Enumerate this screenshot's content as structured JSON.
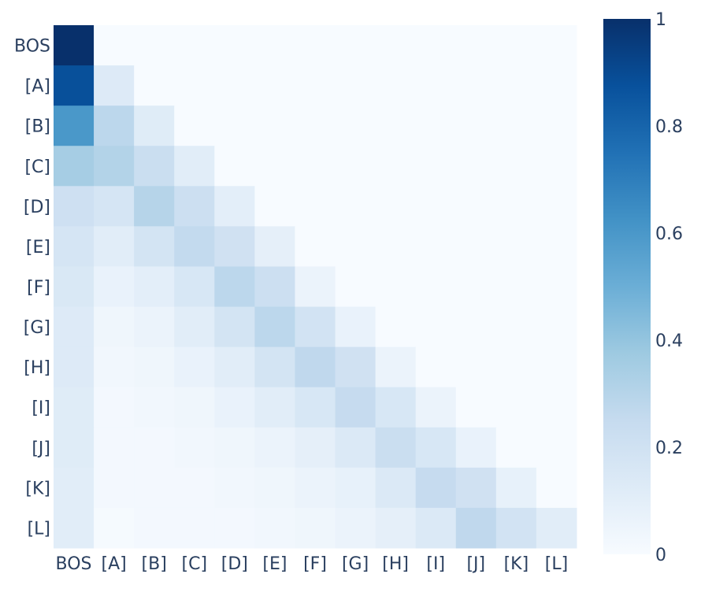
{
  "chart_data": {
    "type": "heatmap",
    "x_labels": [
      "BOS",
      "[A]",
      "[B]",
      "[C]",
      "[D]",
      "[E]",
      "[F]",
      "[G]",
      "[H]",
      "[I]",
      "[J]",
      "[K]",
      "[L]"
    ],
    "y_labels": [
      "BOS",
      "[A]",
      "[B]",
      "[C]",
      "[D]",
      "[E]",
      "[F]",
      "[G]",
      "[H]",
      "[I]",
      "[J]",
      "[K]",
      "[L]"
    ],
    "values": [
      [
        1.0,
        0,
        0,
        0,
        0,
        0,
        0,
        0,
        0,
        0,
        0,
        0,
        0
      ],
      [
        0.88,
        0.13,
        0,
        0,
        0,
        0,
        0,
        0,
        0,
        0,
        0,
        0,
        0
      ],
      [
        0.6,
        0.28,
        0.12,
        0,
        0,
        0,
        0,
        0,
        0,
        0,
        0,
        0,
        0
      ],
      [
        0.35,
        0.31,
        0.23,
        0.11,
        0,
        0,
        0,
        0,
        0,
        0,
        0,
        0,
        0
      ],
      [
        0.21,
        0.17,
        0.3,
        0.22,
        0.1,
        0,
        0,
        0,
        0,
        0,
        0,
        0,
        0
      ],
      [
        0.17,
        0.11,
        0.18,
        0.26,
        0.2,
        0.09,
        0,
        0,
        0,
        0,
        0,
        0,
        0
      ],
      [
        0.15,
        0.07,
        0.1,
        0.16,
        0.28,
        0.22,
        0.06,
        0,
        0,
        0,
        0,
        0,
        0
      ],
      [
        0.13,
        0.04,
        0.06,
        0.11,
        0.18,
        0.28,
        0.19,
        0.07,
        0,
        0,
        0,
        0,
        0
      ],
      [
        0.13,
        0.03,
        0.04,
        0.07,
        0.11,
        0.18,
        0.27,
        0.2,
        0.06,
        0,
        0,
        0,
        0
      ],
      [
        0.12,
        0.02,
        0.03,
        0.04,
        0.07,
        0.11,
        0.16,
        0.25,
        0.16,
        0.06,
        0,
        0,
        0
      ],
      [
        0.12,
        0.02,
        0.02,
        0.03,
        0.04,
        0.06,
        0.09,
        0.14,
        0.23,
        0.16,
        0.07,
        0,
        0
      ],
      [
        0.11,
        0.02,
        0.02,
        0.02,
        0.03,
        0.04,
        0.06,
        0.08,
        0.14,
        0.25,
        0.2,
        0.08,
        0
      ],
      [
        0.11,
        0.01,
        0.02,
        0.02,
        0.02,
        0.03,
        0.04,
        0.06,
        0.09,
        0.14,
        0.27,
        0.19,
        0.11
      ]
    ],
    "zrange": [
      0,
      1
    ],
    "colorscale": "Blues",
    "colorbar_ticks": [
      "0",
      "0.2",
      "0.4",
      "0.6",
      "0.8",
      "1"
    ],
    "colorbar_tick_values": [
      0,
      0.2,
      0.4,
      0.6,
      0.8,
      1
    ],
    "colors": {
      "text": "#2a3f5f",
      "scale": [
        "#f7fbff",
        "#deebf7",
        "#c6dbef",
        "#9ecae1",
        "#6baed6",
        "#4292c6",
        "#2171b5",
        "#08519c",
        "#08306b"
      ]
    }
  }
}
